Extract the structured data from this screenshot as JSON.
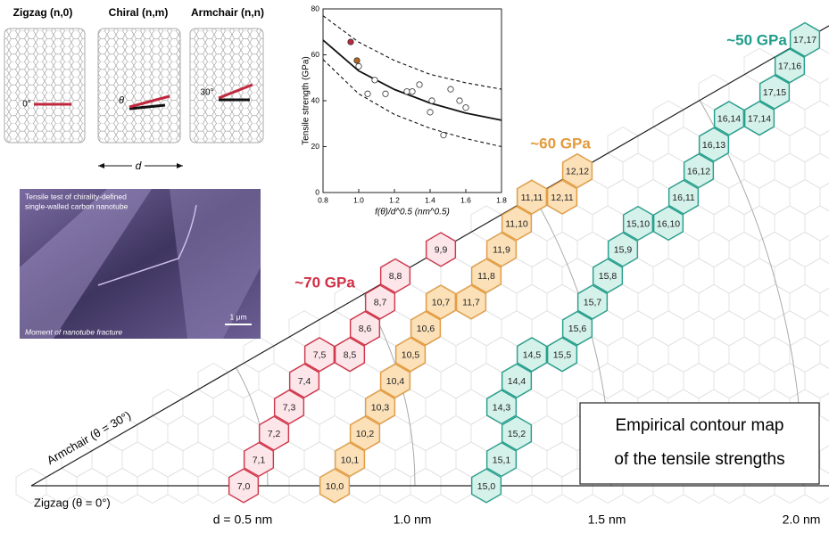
{
  "header": {
    "zigzag": "Zigzag (n,0)",
    "chiral": "Chiral (n,m)",
    "armchair": "Armchair (n,n)",
    "angle_zigzag": "0°",
    "angle_chiral": "θ",
    "angle_armchair": "30°",
    "diameter": "d"
  },
  "micrograph": {
    "caption_top": [
      "Tensile test of chirality-defined",
      "single-walled carbon nanotube"
    ],
    "scale_bar": "1 μm",
    "caption_bottom": "Moment of nanotube fracture"
  },
  "inset_chart": {
    "type": "scatter",
    "ylabel": "Tensile strength (GPa)",
    "xlabel": "f(θ)/d^0.5 (nm^0.5)",
    "xlim": [
      0.8,
      1.8
    ],
    "ylim": [
      0,
      80
    ],
    "xticks": [
      0.8,
      {
        "value": 1.0,
        "label": "1.0"
      },
      1.2,
      1.4,
      1.6,
      1.8
    ],
    "yticks": [
      0,
      20,
      40,
      60,
      80
    ],
    "series": [
      {
        "color": "#c0263c",
        "x": [
          0.955
        ],
        "y": [
          65.6
        ]
      },
      {
        "color": "#b5651d",
        "x": [
          0.99
        ],
        "y": [
          57.5
        ]
      },
      {
        "color": "#ffffff",
        "x": [
          1.0,
          1.05,
          1.09,
          1.15,
          1.27,
          1.3,
          1.34,
          1.4,
          1.41,
          1.475,
          1.515,
          1.565,
          1.6
        ],
        "y": [
          55,
          43,
          49,
          43,
          44,
          44,
          47,
          35,
          40,
          25,
          45,
          40,
          37
        ]
      }
    ],
    "curves": [
      {
        "style": "solid",
        "x": [
          0.8,
          1.0,
          1.2,
          1.4,
          1.6,
          1.8
        ],
        "y": [
          66.4,
          53,
          44.9,
          39,
          34.6,
          31.5
        ]
      },
      {
        "style": "dashed",
        "x": [
          0.8,
          1.0,
          1.2,
          1.4,
          1.6,
          1.8
        ],
        "y": [
          77,
          65.5,
          57.5,
          51.5,
          47.8,
          45
        ]
      },
      {
        "style": "dashed",
        "x": [
          0.8,
          1.0,
          1.2,
          1.4,
          1.6,
          1.8
        ],
        "y": [
          58,
          43,
          34,
          28,
          23.5,
          20
        ]
      }
    ]
  },
  "map": {
    "armchair_axis": "Armchair (θ = 30°)",
    "zigzag_axis": "Zigzag (θ = 0°)",
    "diameters": [
      "d = 0.5 nm",
      "1.0 nm",
      "1.5 nm",
      "2.0 nm"
    ],
    "groups": [
      {
        "label": "~70 GPa",
        "color": "#d12f45",
        "fill": "#fde6e9",
        "chiralities": [
          "7,0",
          "7,1",
          "7,2",
          "7,3",
          "7,4",
          "7,5",
          "8,5",
          "8,6",
          "8,7",
          "8,8",
          "9,9"
        ]
      },
      {
        "label": "~60 GPa",
        "color": "#e39a3c",
        "fill": "#fbe0b8",
        "chiralities": [
          "10,0",
          "10,1",
          "10,2",
          "10,3",
          "10,4",
          "10,5",
          "10,6",
          "10,7",
          "11,7",
          "11,8",
          "11,9",
          "11,10",
          "11,11",
          "12,11",
          "12,12"
        ]
      },
      {
        "label": "~50 GPa",
        "color": "#1f9d8a",
        "fill": "#d4f1ea",
        "chiralities": [
          "15,0",
          "15,1",
          "15,2",
          "14,3",
          "14,4",
          "14,5",
          "15,5",
          "15,6",
          "15,7",
          "15,8",
          "15,9",
          "15,10",
          "16,10",
          "16,11",
          "16,12",
          "16,13",
          "16,14",
          "17,14",
          "17,15",
          "17,16",
          "17,17"
        ]
      }
    ],
    "legend_box": [
      "Empirical contour map",
      "of the tensile strengths"
    ]
  }
}
